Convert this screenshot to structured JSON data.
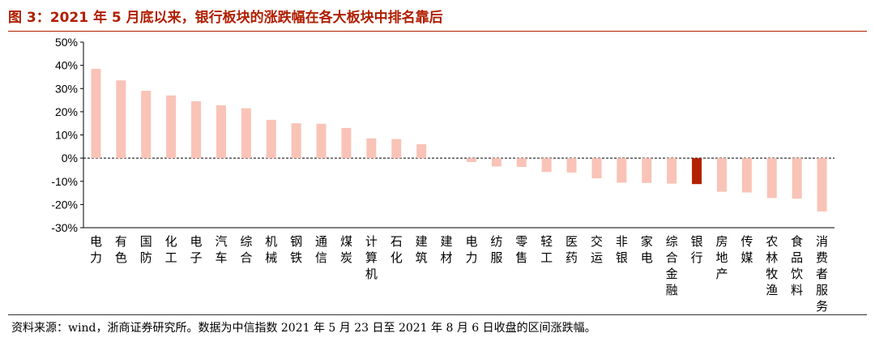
{
  "title": "图 3：2021 年 5 月底以来，银行板块的涨跌幅在各大板块中排名靠后",
  "footnote": "资料来源：wind，浙商证券研究所。数据为中信指数 2021 年 5 月 23 日至 2021 年 8 月 6 日收盘的区间涨跌幅。",
  "colors": {
    "title": "#b01f00",
    "bar": "#f9c3b7",
    "highlight": "#b22200"
  },
  "chart_data": {
    "type": "bar",
    "categories": [
      "电力",
      "有色",
      "国防",
      "化工",
      "电子",
      "汽车",
      "综合",
      "机械",
      "钢铁",
      "通信",
      "煤炭",
      "计算机",
      "石化",
      "建筑",
      "建材",
      "电力",
      "纺服",
      "零售",
      "轻工",
      "医药",
      "交运",
      "非银",
      "家电",
      "综合金融",
      "银行",
      "房地产",
      "传媒",
      "农林牧渔",
      "食品饮料",
      "消费者服务"
    ],
    "values": [
      38.5,
      33.5,
      29,
      27,
      24.5,
      22.8,
      21.5,
      16.5,
      15,
      14.8,
      13,
      8.5,
      8.2,
      6,
      0,
      -1.7,
      -3.6,
      -3.8,
      -6,
      -6.2,
      -8.7,
      -10.6,
      -10.7,
      -11,
      -11.2,
      -14.5,
      -14.8,
      -17.2,
      -17.5,
      -23
    ],
    "highlight": "银行",
    "ylim": [
      -30,
      50
    ],
    "yticks": [
      -30,
      -20,
      -10,
      0,
      10,
      20,
      30,
      40,
      50
    ],
    "ytick_labels": [
      "-30%",
      "-20%",
      "-10%",
      "0%",
      "10%",
      "20%",
      "30%",
      "40%",
      "50%"
    ],
    "zero_line": "dashed",
    "grid": false,
    "legend": "none",
    "title": "",
    "xlabel": "",
    "ylabel": ""
  }
}
